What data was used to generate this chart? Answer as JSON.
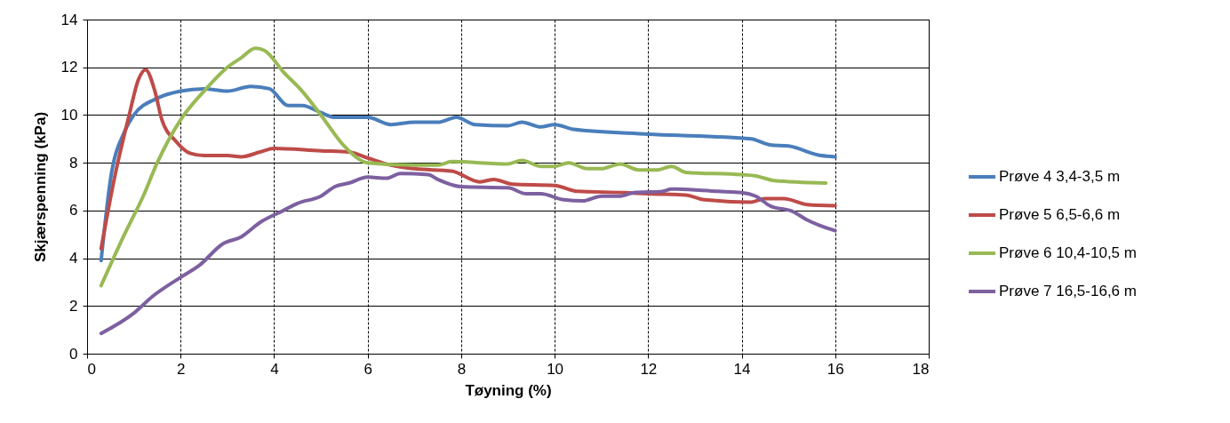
{
  "chart_data": {
    "type": "line",
    "xlabel": "Tøyning (%)",
    "ylabel": "Skjærspenning (kPa)",
    "xlim": [
      0,
      18
    ],
    "xticks": [
      0,
      2,
      4,
      6,
      8,
      10,
      12,
      14,
      16,
      18
    ],
    "ylim": [
      0,
      14
    ],
    "yticks": [
      0,
      2,
      4,
      6,
      8,
      10,
      12,
      14
    ],
    "grid": true,
    "legend": "right",
    "marker": "none",
    "line_style": "solid",
    "series": [
      {
        "name": "Prøve 4  3,4-3,5 m",
        "color": "#4a7ebb",
        "x": [
          0.3,
          0.5,
          0.8,
          1.0,
          1.5,
          2.0,
          2.5,
          3.0,
          3.5,
          3.9,
          4.3,
          4.6,
          5.0,
          5.3,
          6.0,
          6.5,
          7.0,
          7.5,
          7.9,
          8.3,
          9.0,
          9.3,
          9.7,
          10.0,
          10.4,
          12.0,
          14.2,
          14.6,
          15.0,
          15.7,
          16.0
        ],
        "values": [
          3.9,
          7.3,
          9.3,
          10.0,
          10.7,
          11.0,
          11.1,
          11.0,
          11.2,
          11.1,
          10.4,
          10.4,
          10.1,
          9.9,
          9.9,
          9.6,
          9.7,
          9.7,
          9.9,
          9.6,
          9.55,
          9.7,
          9.5,
          9.6,
          9.4,
          9.2,
          9.0,
          8.75,
          8.7,
          8.3,
          8.25
        ]
      },
      {
        "name": "Prøve 5  6,5-6,6 m",
        "color": "#be4b48",
        "x": [
          0.3,
          0.6,
          0.9,
          1.1,
          1.25,
          1.45,
          1.6,
          1.9,
          2.2,
          2.5,
          3.0,
          3.3,
          3.7,
          4.0,
          5.0,
          5.6,
          6.0,
          6.5,
          7.0,
          7.8,
          8.4,
          8.7,
          9.1,
          10.0,
          10.5,
          11.5,
          12.0,
          12.8,
          13.2,
          14.2,
          14.5,
          14.9,
          15.4,
          16.0
        ],
        "values": [
          4.4,
          7.5,
          10.0,
          11.5,
          11.9,
          11.0,
          9.8,
          8.9,
          8.4,
          8.3,
          8.3,
          8.25,
          8.45,
          8.6,
          8.5,
          8.45,
          8.2,
          7.9,
          7.75,
          7.65,
          7.2,
          7.3,
          7.1,
          7.05,
          6.8,
          6.75,
          6.7,
          6.65,
          6.45,
          6.35,
          6.5,
          6.5,
          6.25,
          6.2
        ]
      },
      {
        "name": "Prøve 6  10,4-10,5 m",
        "color": "#98b954",
        "x": [
          0.3,
          0.8,
          1.2,
          1.5,
          2.0,
          2.5,
          3.0,
          3.3,
          3.6,
          3.8,
          4.2,
          4.6,
          5.0,
          5.5,
          6.0,
          7.0,
          7.5,
          7.8,
          9.0,
          9.3,
          9.7,
          10.0,
          10.3,
          10.7,
          11.0,
          11.4,
          11.8,
          12.2,
          12.5,
          12.8,
          14.0,
          14.3,
          14.7,
          15.8
        ],
        "values": [
          2.85,
          5.0,
          6.6,
          8.0,
          9.8,
          11.0,
          12.0,
          12.4,
          12.8,
          12.7,
          11.8,
          11.0,
          10.0,
          8.7,
          8.0,
          7.9,
          7.9,
          8.05,
          7.95,
          8.1,
          7.85,
          7.85,
          8.0,
          7.75,
          7.75,
          7.95,
          7.7,
          7.7,
          7.85,
          7.6,
          7.5,
          7.45,
          7.25,
          7.15
        ]
      },
      {
        "name": "Prøve 7  16,5-16,6 m",
        "color": "#7d60a0",
        "x": [
          0.3,
          1.0,
          1.4,
          2.0,
          2.4,
          2.9,
          3.3,
          3.7,
          4.2,
          4.5,
          5.0,
          5.3,
          5.6,
          6.0,
          6.4,
          6.7,
          7.3,
          7.5,
          8.0,
          9.0,
          9.4,
          9.7,
          10.2,
          10.6,
          11.0,
          11.4,
          11.7,
          12.3,
          12.5,
          13.5,
          14.0,
          14.3,
          14.6,
          15.1,
          15.4,
          16.0
        ],
        "values": [
          0.85,
          1.7,
          2.4,
          3.2,
          3.7,
          4.6,
          4.9,
          5.5,
          6.0,
          6.3,
          6.6,
          7.0,
          7.15,
          7.4,
          7.35,
          7.55,
          7.5,
          7.3,
          7.0,
          6.95,
          6.7,
          6.7,
          6.45,
          6.4,
          6.6,
          6.6,
          6.75,
          6.8,
          6.9,
          6.8,
          6.75,
          6.6,
          6.2,
          5.95,
          5.6,
          5.15
        ]
      }
    ]
  }
}
